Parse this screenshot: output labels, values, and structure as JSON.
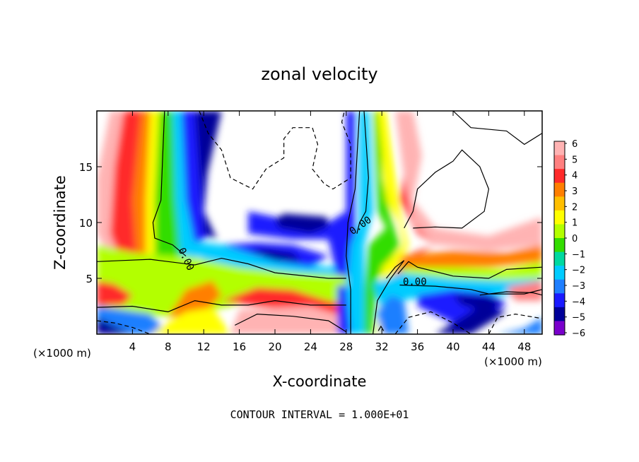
{
  "chart_data": {
    "type": "heatmap",
    "title": "zonal velocity",
    "xlabel": "X-coordinate",
    "ylabel": "Z-coordinate",
    "x_unit": "(×1000 m)",
    "z_unit": "(×1000 m)",
    "xlim": [
      0,
      50
    ],
    "ylim": [
      0,
      20
    ],
    "x_ticks": [
      4,
      8,
      12,
      16,
      20,
      24,
      28,
      32,
      36,
      40,
      44,
      48
    ],
    "y_ticks": [
      5,
      10,
      15
    ],
    "colorbar": {
      "ticks": [
        6,
        5,
        4,
        3,
        2,
        1,
        0,
        -1,
        -2,
        -3,
        -4,
        -5,
        -6
      ],
      "labels": [
        "6",
        "5",
        "4",
        "3",
        "2",
        "1",
        "0",
        "−1",
        "−2",
        "−3",
        "−4",
        "−5",
        "−6"
      ],
      "colors": [
        "#ffb3b3",
        "#ff8080",
        "#ff2a2a",
        "#ff7f00",
        "#ffbf00",
        "#ffff00",
        "#b3ff00",
        "#33dd00",
        "#00d9a0",
        "#00ccff",
        "#1f7fff",
        "#1a1aff",
        "#000099",
        "#7a00cc"
      ]
    },
    "contour_labels": [
      {
        "text": "0.00",
        "x": 9.7,
        "z": 6.6,
        "rotate": 65
      },
      {
        "text": "0.00",
        "x": 29.8,
        "z": 9.5,
        "rotate": -35
      },
      {
        "text": "0.00",
        "x": 35.7,
        "z": 4.4,
        "rotate": 0
      }
    ],
    "footer": "CONTOUR INTERVAL = 1.000E+01"
  }
}
